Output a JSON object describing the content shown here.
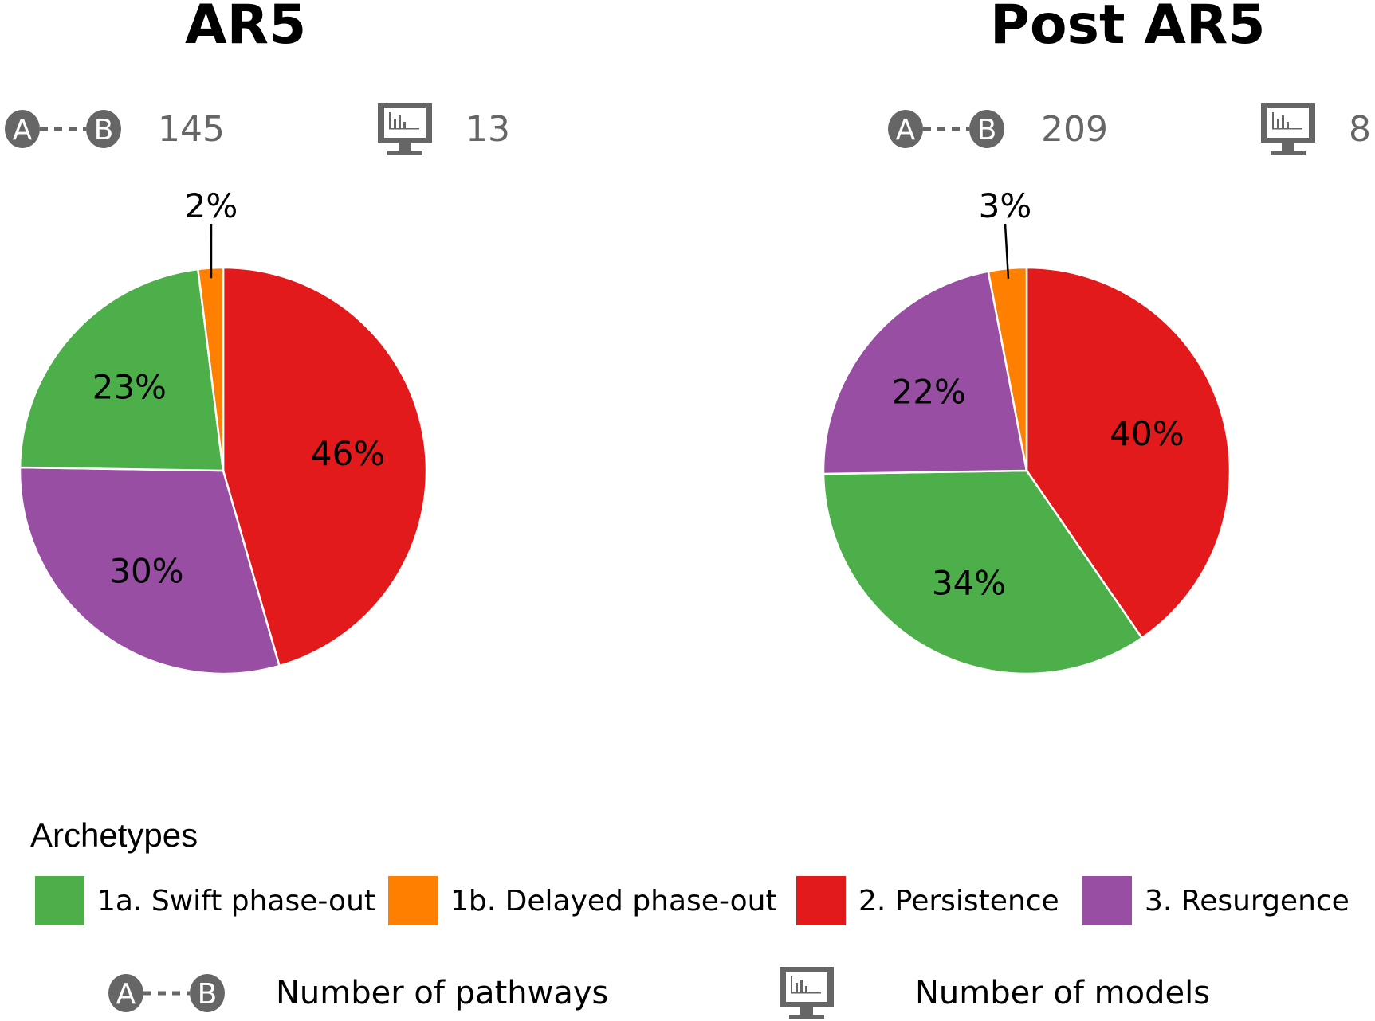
{
  "chart_data": [
    {
      "type": "pie",
      "title": "AR5",
      "pathways": 145,
      "models": 13,
      "slices": [
        {
          "label": "2. Persistence",
          "value": 46,
          "display": "46%",
          "color": "#e31a1c"
        },
        {
          "label": "3. Resurgence",
          "value": 30,
          "display": "30%",
          "color": "#984ea3"
        },
        {
          "label": "1a. Swift phase-out",
          "value": 23,
          "display": "23%",
          "color": "#4daf4a"
        },
        {
          "label": "1b. Delayed phase-out",
          "value": 2,
          "display": "2%",
          "color": "#ff7f00"
        }
      ]
    },
    {
      "type": "pie",
      "title": "Post AR5",
      "pathways": 209,
      "models": 8,
      "slices": [
        {
          "label": "2. Persistence",
          "value": 40,
          "display": "40%",
          "color": "#e31a1c"
        },
        {
          "label": "1a. Swift phase-out",
          "value": 34,
          "display": "34%",
          "color": "#4daf4a"
        },
        {
          "label": "3. Resurgence",
          "value": 22,
          "display": "22%",
          "color": "#984ea3"
        },
        {
          "label": "1b. Delayed phase-out",
          "value": 3,
          "display": "3%",
          "color": "#ff7f00"
        }
      ]
    }
  ],
  "panels": {
    "left": {
      "title": "AR5",
      "pathways": "145",
      "models": "13",
      "icon_a": "A",
      "icon_b": "B"
    },
    "right": {
      "title": "Post AR5",
      "pathways": "209",
      "models": "8",
      "icon_a": "A",
      "icon_b": "B"
    }
  },
  "legend": {
    "title": "Archetypes",
    "items": [
      {
        "label": "1a. Swift phase-out",
        "color": "#4daf4a"
      },
      {
        "label": "1b. Delayed phase-out",
        "color": "#ff7f00"
      },
      {
        "label": "2. Persistence",
        "color": "#e31a1c"
      },
      {
        "label": "3. Resurgence",
        "color": "#984ea3"
      }
    ],
    "pathways_key": "Number of pathways",
    "models_key": "Number of models",
    "icon_a": "A",
    "icon_b": "B"
  }
}
